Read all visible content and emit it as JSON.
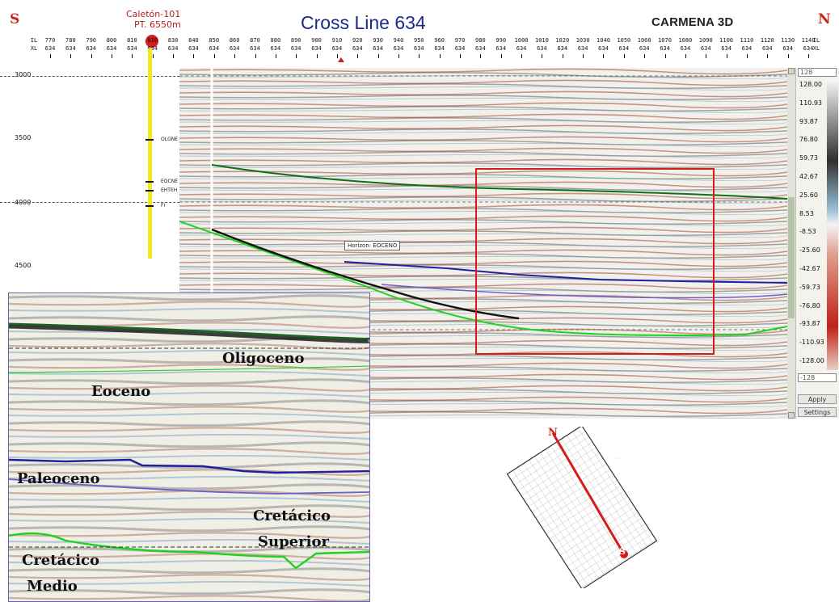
{
  "header": {
    "south": "S",
    "north": "N",
    "title": "Cross Line 634",
    "survey": "CARMENA 3D",
    "well_name": "Caletón-101",
    "well_point": "PT. 6550m"
  },
  "axis": {
    "row1_label": "IL",
    "row2_label": "XL",
    "inlines": [
      "770",
      "780",
      "790",
      "800",
      "810",
      "820",
      "830",
      "840",
      "850",
      "860",
      "870",
      "880",
      "890",
      "900",
      "910",
      "920",
      "930",
      "940",
      "950",
      "960",
      "970",
      "980",
      "990",
      "1000",
      "1010",
      "1020",
      "1030",
      "1040",
      "1050",
      "1060",
      "1070",
      "1080",
      "1090",
      "1100",
      "1110",
      "1120",
      "1130",
      "1140"
    ],
    "crossline_value": "634",
    "time_labels": [
      "3000",
      "3500",
      "4000",
      "4500"
    ]
  },
  "well_markers": [
    "OLGNE",
    "EOCNE",
    "EHTEH",
    "FI"
  ],
  "horizon_label": "Horizon: EOCENO",
  "colorbar": {
    "max_box": "128",
    "min_box": "-128",
    "values": [
      "128.00",
      "110.93",
      "93.87",
      "76.80",
      "59.73",
      "42.67",
      "25.60",
      "8.53",
      "-8.53",
      "-25.60",
      "-42.67",
      "-59.73",
      "-76.80",
      "-93.87",
      "-110.93",
      "-128.00"
    ],
    "apply_label": "Apply",
    "settings_label": "Settings"
  },
  "inset": {
    "formations": [
      "Oligoceno",
      "Eoceno",
      "Paleoceno",
      "Cretácico",
      "Superior",
      "Cretácico",
      "Medio"
    ]
  },
  "minimap": {
    "north": "N",
    "south": "S"
  },
  "colors": {
    "direction": "#c8281e",
    "title": "#1c2a8a",
    "zoom_box": "#d41c1c",
    "horizon_green": "#1fd21f",
    "horizon_dark_green": "#0e6e1a",
    "horizon_blue": "#2020a0",
    "horizon_purple": "#6a5fd0"
  }
}
